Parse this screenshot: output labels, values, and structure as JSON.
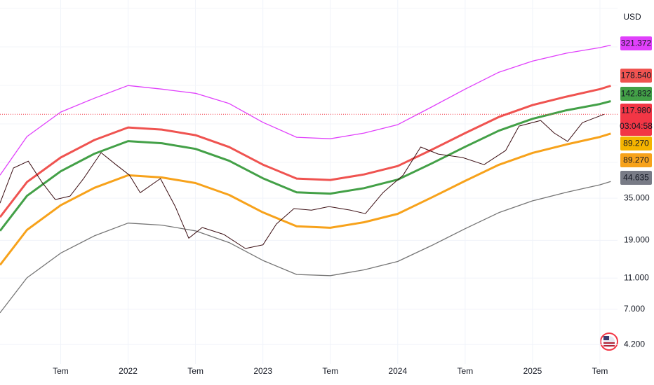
{
  "chart_data": {
    "type": "line",
    "currency": "USD",
    "log_scale": true,
    "grid": true,
    "xlim": [
      2021.05,
      2025.63
    ],
    "ylim": [
      3.17,
      618
    ],
    "xticks": [
      {
        "value": 2021.5,
        "label": "Tem"
      },
      2022,
      {
        "value": 2022.5,
        "label": "Tem"
      },
      2023,
      {
        "value": 2023.5,
        "label": "Tem"
      },
      2024,
      {
        "value": 2024.5,
        "label": "Tem"
      },
      2025,
      {
        "value": 2025.5,
        "label": "Tem"
      }
    ],
    "yticks": [
      {
        "value": 35,
        "label": "35.000"
      },
      {
        "value": 19,
        "label": "19.000"
      },
      {
        "value": 11,
        "label": "11.000"
      },
      {
        "value": 7,
        "label": "7.000"
      },
      {
        "value": 4.2,
        "label": "4.200"
      }
    ],
    "series": [
      {
        "color": "#e040fb",
        "line_width": 1.3,
        "x": [
          2021.05,
          2021.25,
          2021.5,
          2021.75,
          2022,
          2022.25,
          2022.5,
          2022.75,
          2023,
          2023.25,
          2023.5,
          2023.75,
          2024,
          2024.25,
          2024.5,
          2024.75,
          2025,
          2025.25,
          2025.5,
          2025.58
        ],
        "values": [
          48.9,
          85.5,
          121.9,
          149,
          179,
          170,
          160,
          138,
          105,
          84.6,
          82.8,
          89.9,
          101.6,
          131,
          170,
          217,
          255,
          286,
          310,
          321.372
        ]
      },
      {
        "color": "#ef5350",
        "line_width": 3,
        "x": [
          2021.05,
          2021.25,
          2021.5,
          2021.75,
          2022,
          2022.25,
          2022.5,
          2022.75,
          2023,
          2023.25,
          2023.5,
          2023.75,
          2024,
          2024.25,
          2024.5,
          2024.75,
          2025,
          2025.25,
          2025.5,
          2025.58
        ],
        "values": [
          26.6,
          44.2,
          63.1,
          81.3,
          97.5,
          94.6,
          87.2,
          73.4,
          56.9,
          46.5,
          45.6,
          49.4,
          55.8,
          70.5,
          89.9,
          113.5,
          134.9,
          152.4,
          170,
          178.54
        ]
      },
      {
        "color": "#43a047",
        "line_width": 3,
        "x": [
          2021.05,
          2021.25,
          2021.5,
          2021.75,
          2022,
          2022.25,
          2022.5,
          2022.75,
          2023,
          2023.25,
          2023.5,
          2023.75,
          2024,
          2024.25,
          2024.5,
          2024.75,
          2025,
          2025.25,
          2025.5,
          2025.58
        ],
        "values": [
          21.8,
          36.2,
          51.7,
          66.7,
          80,
          77.6,
          71.5,
          60.2,
          46.7,
          38.1,
          37.4,
          40.5,
          45.8,
          57.8,
          73.7,
          93.1,
          110.6,
          125,
          137,
          142.832
        ]
      },
      {
        "color": "#f7a21b",
        "line_width": 3,
        "x": [
          2021.05,
          2021.25,
          2021.5,
          2021.75,
          2022,
          2022.25,
          2022.5,
          2022.75,
          2023,
          2023.25,
          2023.5,
          2023.75,
          2024,
          2024.25,
          2024.5,
          2024.75,
          2025,
          2025.25,
          2025.5,
          2025.58
        ],
        "values": [
          13.3,
          22.1,
          31.6,
          40.7,
          48.8,
          47.3,
          43.6,
          36.7,
          28.5,
          23.3,
          22.8,
          24.7,
          27.9,
          35.3,
          45,
          56.8,
          67.5,
          76.2,
          85,
          89.27
        ]
      },
      {
        "color": "#757575",
        "line_width": 1.3,
        "x": [
          2021.05,
          2021.25,
          2021.5,
          2021.75,
          2022,
          2022.25,
          2022.5,
          2022.75,
          2023,
          2023.25,
          2023.5,
          2023.75,
          2024,
          2024.25,
          2024.5,
          2024.75,
          2025,
          2025.25,
          2025.5,
          2025.58
        ],
        "values": [
          6.65,
          11.05,
          15.8,
          20.3,
          24.4,
          23.7,
          21.8,
          18.4,
          14.2,
          11.6,
          11.4,
          12.4,
          14,
          17.6,
          22.5,
          28.4,
          33.7,
          38.1,
          42.5,
          44.635
        ]
      },
      {
        "color": "#3a0d12",
        "line_width": 1,
        "x": [
          2021.05,
          2021.15,
          2021.26,
          2021.36,
          2021.46,
          2021.57,
          2021.67,
          2021.8,
          2021.91,
          2022.01,
          2022.09,
          2022.24,
          2022.35,
          2022.45,
          2022.55,
          2022.71,
          2022.87,
          2023.0,
          2023.1,
          2023.23,
          2023.36,
          2023.49,
          2023.65,
          2023.76,
          2023.89,
          2024.04,
          2024.17,
          2024.3,
          2024.48,
          2024.64,
          2024.8,
          2024.9,
          2025.06,
          2025.16,
          2025.26,
          2025.37,
          2025.53
        ],
        "values": [
          32.6,
          54.2,
          59.9,
          44.2,
          34.3,
          36.1,
          46.5,
          67.7,
          56.9,
          48.9,
          37.9,
          46.5,
          31.0,
          19.6,
          22.9,
          20.7,
          16.9,
          17.8,
          24.1,
          30.1,
          29.4,
          31.0,
          29.4,
          28.0,
          37.9,
          48.9,
          73.5,
          66.3,
          63.1,
          56.9,
          69.8,
          99.5,
          107.9,
          90.0,
          79.6,
          104.6,
          117.98
        ]
      }
    ],
    "price_labels": [
      321.372,
      {
        "value": 178.54,
        "label": "178.540"
      },
      142.832,
      {
        "value": 117.98,
        "label": "117.980"
      },
      {
        "value": 89.27,
        "label": "89.270"
      },
      {
        "value": 89.27,
        "label": "89.270"
      },
      44.635
    ],
    "price_label_colors": [
      "#e040fb",
      "#ef5350",
      "#43a047",
      "#f23645",
      "#f5b400",
      "#f7a21b",
      "#787b86"
    ],
    "price_label_text_colors": [
      "#ffffff",
      "#ffffff",
      "#ffffff",
      "#ffffff",
      "#131722",
      "#131722",
      "#ffffff"
    ],
    "countdown": "03:04:58"
  }
}
